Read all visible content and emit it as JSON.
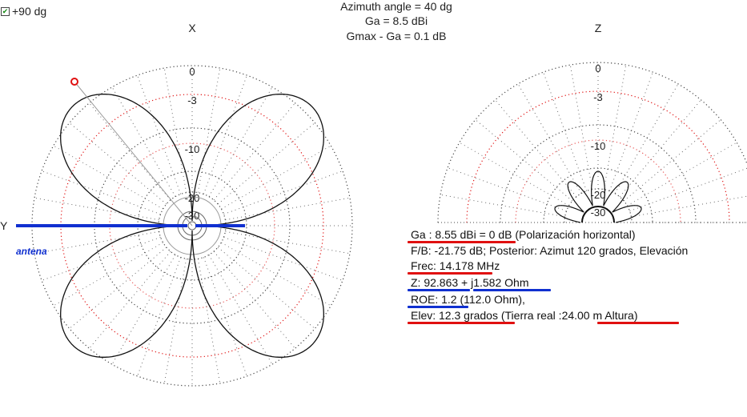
{
  "chart_data": [
    {
      "type": "polar",
      "plot": "azimuth",
      "axis_top_label": "X",
      "axis_left_label": "Y",
      "ring_labels": [
        "0",
        "-3",
        "-10",
        "-20",
        "-30"
      ],
      "marker_azimuth_deg": 40,
      "antenna_label": "antena"
    },
    {
      "type": "polar",
      "plot": "elevation",
      "axis_top_label": "Z",
      "ring_labels": [
        "0",
        "-3",
        "-10",
        "-20",
        "-30"
      ]
    }
  ],
  "header": {
    "line1": "Azimuth angle = 40 dg",
    "line2": "Ga = 8.5 dBi",
    "line3": "Gmax - Ga = 0.1 dB"
  },
  "checkbox": {
    "label": "+90 dg",
    "checked": true
  },
  "info": [
    "Ga : 8.55 dBi = 0 dB  (Polarización horizontal)",
    "F/B: -21.75 dB; Posterior: Azimut 120 grados,  Elevación",
    "Frec: 14.178 MHz",
    "Z: 92.863 + j1.582 Ohm",
    "ROE: 1.2 (112.0 Ohm),",
    "Elev: 12.3 grados (Tierra real  :24.00 m Altura)"
  ],
  "colors": {
    "grid_dotted": "#444444",
    "grid_red": "#e01010",
    "pattern": "#111111",
    "antenna": "#1030d0",
    "marker": "#e01010",
    "underline_red": "#e01010",
    "underline_blue": "#1030d0"
  }
}
